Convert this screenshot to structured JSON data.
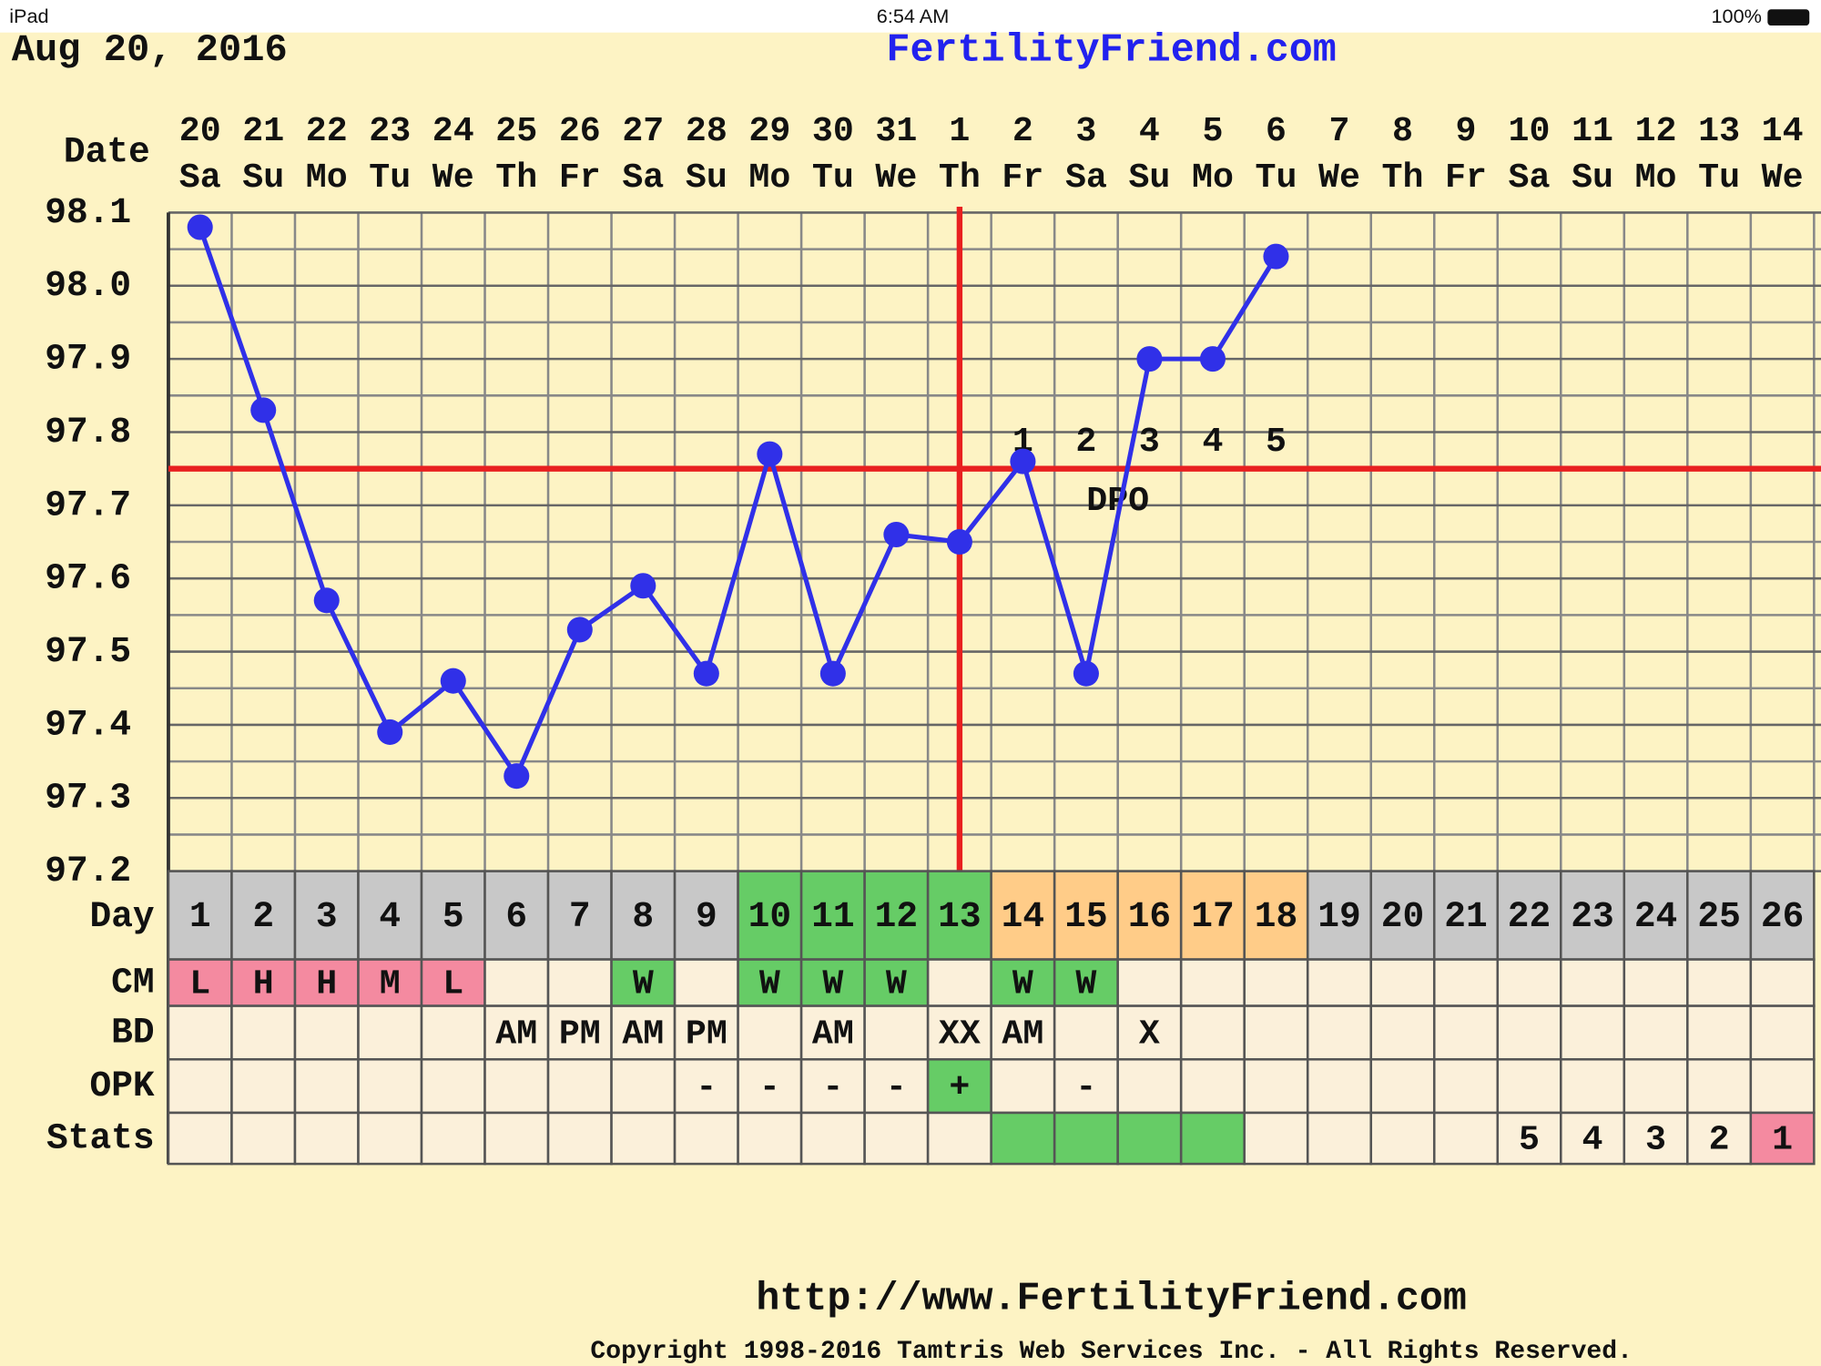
{
  "status_bar": {
    "device": "iPad",
    "time": "6:54 AM",
    "battery": "100%"
  },
  "header": {
    "date": "Aug 20, 2016",
    "site": "FertilityFriend.com"
  },
  "chart_data": {
    "type": "line",
    "date_label": "Date",
    "dates": [
      "20",
      "21",
      "22",
      "23",
      "24",
      "25",
      "26",
      "27",
      "28",
      "29",
      "30",
      "31",
      "1",
      "2",
      "3",
      "4",
      "5",
      "6",
      "7",
      "8",
      "9",
      "10",
      "11",
      "12",
      "13",
      "14"
    ],
    "weekdays": [
      "Sa",
      "Su",
      "Mo",
      "Tu",
      "We",
      "Th",
      "Fr",
      "Sa",
      "Su",
      "Mo",
      "Tu",
      "We",
      "Th",
      "Fr",
      "Sa",
      "Su",
      "Mo",
      "Tu",
      "We",
      "Th",
      "Fr",
      "Sa",
      "Su",
      "Mo",
      "Tu",
      "We"
    ],
    "categories": [
      "1",
      "2",
      "3",
      "4",
      "5",
      "6",
      "7",
      "8",
      "9",
      "10",
      "11",
      "12",
      "13",
      "14",
      "15",
      "16",
      "17",
      "18",
      "19",
      "20",
      "21",
      "22",
      "23",
      "24",
      "25",
      "26"
    ],
    "values": [
      98.08,
      97.83,
      97.57,
      97.39,
      97.46,
      97.33,
      97.53,
      97.59,
      97.47,
      97.77,
      97.47,
      97.66,
      97.65,
      97.76,
      97.47,
      97.9,
      97.9,
      98.04,
      null,
      null,
      null,
      null,
      null,
      null,
      null,
      null
    ],
    "color": "#3030e8",
    "ylim": [
      97.2,
      98.1
    ],
    "yticks": [
      97.2,
      97.3,
      97.4,
      97.5,
      97.6,
      97.7,
      97.8,
      97.9,
      {
        "value": 98,
        "label": "98.0"
      },
      98.1
    ],
    "minor_yticks": [
      97.25,
      97.35,
      97.45,
      97.55,
      97.65,
      97.75,
      97.85,
      97.95,
      98.05
    ],
    "grid": true,
    "coverline": 97.75,
    "ovulation_day": 13,
    "marker_color": "#e82020",
    "dpo": [
      null,
      null,
      null,
      null,
      null,
      null,
      null,
      null,
      null,
      null,
      null,
      null,
      null,
      "1",
      "2",
      "3",
      "4",
      "5",
      null,
      null,
      null,
      null,
      null,
      null,
      null,
      null
    ],
    "dpo_label": "DPO",
    "day_row": {
      "label": "Day",
      "colors": [
        "#c8c8c8",
        "#c8c8c8",
        "#c8c8c8",
        "#c8c8c8",
        "#c8c8c8",
        "#c8c8c8",
        "#c8c8c8",
        "#c8c8c8",
        "#c8c8c8",
        "#66cc66",
        "#66cc66",
        "#66cc66",
        "#66cc66",
        "#ffcc88",
        "#ffcc88",
        "#ffcc88",
        "#ffcc88",
        "#ffcc88",
        "#c8c8c8",
        "#c8c8c8",
        "#c8c8c8",
        "#c8c8c8",
        "#c8c8c8",
        "#c8c8c8",
        "#c8c8c8",
        "#c8c8c8"
      ]
    },
    "rows": [
      {
        "label": "CM",
        "values": [
          "L",
          "H",
          "H",
          "M",
          "L",
          null,
          null,
          "W",
          null,
          "W",
          "W",
          "W",
          null,
          "W",
          "W",
          null,
          null,
          null,
          null,
          null,
          null,
          null,
          null,
          null,
          null,
          null
        ],
        "colors": [
          "#f48aa0",
          "#f48aa0",
          "#f48aa0",
          "#f48aa0",
          "#f48aa0",
          null,
          null,
          "#66cc66",
          null,
          "#66cc66",
          "#66cc66",
          "#66cc66",
          null,
          "#66cc66",
          "#66cc66",
          null,
          null,
          null,
          null,
          null,
          null,
          null,
          null,
          null,
          null,
          null
        ]
      },
      {
        "label": "BD",
        "values": [
          null,
          null,
          null,
          null,
          null,
          "AM",
          "PM",
          "AM",
          "PM",
          null,
          "AM",
          null,
          "XX",
          "AM",
          null,
          "X",
          null,
          null,
          null,
          null,
          null,
          null,
          null,
          null,
          null,
          null
        ],
        "colors": [
          null,
          null,
          null,
          null,
          null,
          null,
          null,
          null,
          null,
          null,
          null,
          null,
          null,
          null,
          null,
          null,
          null,
          null,
          null,
          null,
          null,
          null,
          null,
          null,
          null,
          null
        ]
      },
      {
        "label": "OPK",
        "values": [
          null,
          null,
          null,
          null,
          null,
          null,
          null,
          null,
          "-",
          "-",
          "-",
          "-",
          "+",
          null,
          "-",
          null,
          null,
          null,
          null,
          null,
          null,
          null,
          null,
          null,
          null,
          null
        ],
        "colors": [
          null,
          null,
          null,
          null,
          null,
          null,
          null,
          null,
          null,
          null,
          null,
          null,
          "#66cc66",
          null,
          null,
          null,
          null,
          null,
          null,
          null,
          null,
          null,
          null,
          null,
          null,
          null
        ]
      },
      {
        "label": "Stats",
        "values": [
          null,
          null,
          null,
          null,
          null,
          null,
          null,
          null,
          null,
          null,
          null,
          null,
          null,
          null,
          null,
          null,
          null,
          null,
          null,
          null,
          null,
          "5",
          "4",
          "3",
          "2",
          "1"
        ],
        "colors": [
          null,
          null,
          null,
          null,
          null,
          null,
          null,
          null,
          null,
          null,
          null,
          null,
          null,
          "#66cc66",
          "#66cc66",
          "#66cc66",
          "#66cc66",
          null,
          null,
          null,
          null,
          null,
          null,
          null,
          null,
          "#f48aa0"
        ]
      }
    ]
  },
  "footer": {
    "url": "http://www.FertilityFriend.com",
    "copyright": "Copyright 1998-2016 Tamtris Web Services Inc. - All Rights Reserved."
  }
}
